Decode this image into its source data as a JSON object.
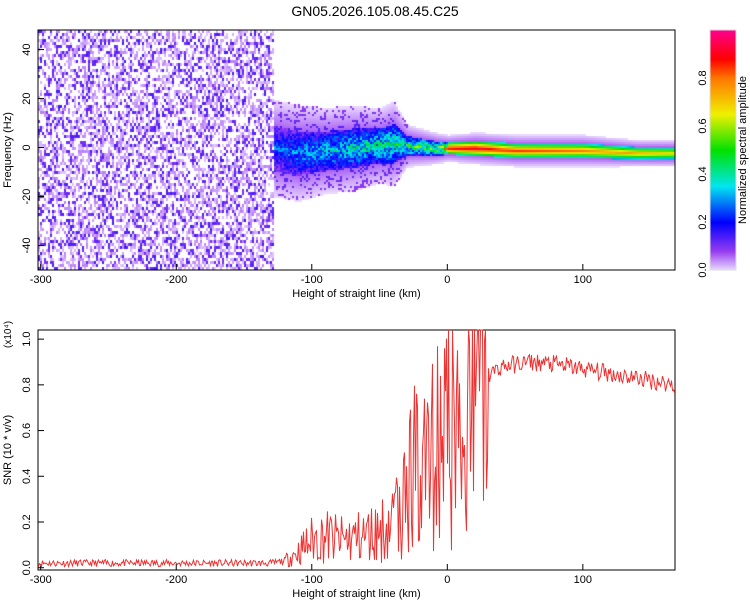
{
  "title": "GN05.2026.105.08.45.C25",
  "chart_data": [
    {
      "type": "heatmap",
      "xlabel": "Height of straight line (km)",
      "ylabel": "Frequency (Hz)",
      "xlim": [
        -302,
        168
      ],
      "ylim": [
        -50,
        48
      ],
      "xticks": [
        -300,
        -200,
        -100,
        0,
        100
      ],
      "yticks": [
        -40,
        -20,
        0,
        20,
        40
      ],
      "colorbar": {
        "label": "Normalized spectral amplitude",
        "range": [
          0,
          1
        ],
        "ticks": [
          "0.0",
          "0.2",
          "0.4",
          "0.6",
          "0.8"
        ]
      },
      "noise_region": {
        "x_range": [
          -302,
          -128
        ],
        "amplitude_range": [
          0.02,
          0.2
        ]
      },
      "ridge": {
        "x": [
          -128,
          -110,
          -90,
          -70,
          -50,
          -40,
          -30,
          -10,
          0,
          20,
          50,
          100,
          140,
          168
        ],
        "center_hz": [
          0,
          -2,
          -1,
          0,
          1,
          2,
          1,
          0,
          0,
          0,
          -1,
          -1,
          -2,
          -2
        ],
        "halfwidth_hz": [
          9,
          9,
          8,
          8,
          7,
          8,
          4,
          3,
          2.5,
          3,
          3,
          3,
          2.5,
          2.5
        ],
        "peak_amplitude": [
          0.3,
          0.35,
          0.4,
          0.45,
          0.5,
          0.5,
          0.55,
          0.6,
          0.9,
          0.95,
          0.85,
          0.8,
          0.75,
          0.7
        ]
      }
    },
    {
      "type": "line",
      "xlabel": "Height of straight line (km)",
      "ylabel": "SNR (10 * v/v)",
      "y_multiplier": "(x10⁴)",
      "xlim": [
        -302,
        168
      ],
      "ylim": [
        -0.01,
        1.04
      ],
      "xticks": [
        -300,
        -200,
        -100,
        0,
        100
      ],
      "yticks": [
        "0.0",
        "0.2",
        "0.4",
        "0.6",
        "0.8",
        "1.0"
      ],
      "color": "#ee3333",
      "series": [
        {
          "name": "SNR",
          "x": [
            -302,
            -250,
            -200,
            -150,
            -130,
            -120,
            -110,
            -100,
            -90,
            -80,
            -70,
            -60,
            -50,
            -40,
            -30,
            -20,
            -10,
            0,
            10,
            20,
            30,
            40,
            60,
            80,
            100,
            120,
            140,
            168
          ],
          "y": [
            0.02,
            0.02,
            0.02,
            0.02,
            0.02,
            0.03,
            0.07,
            0.12,
            0.14,
            0.12,
            0.13,
            0.14,
            0.16,
            0.2,
            0.35,
            0.48,
            0.55,
            0.6,
            0.55,
            0.75,
            0.84,
            0.88,
            0.9,
            0.89,
            0.87,
            0.85,
            0.83,
            0.8
          ]
        }
      ]
    }
  ]
}
